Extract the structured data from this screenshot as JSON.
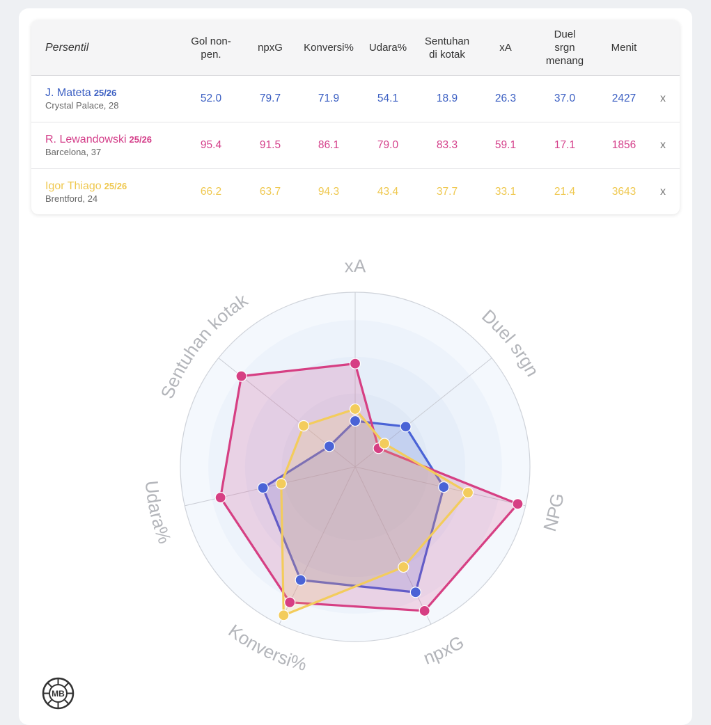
{
  "table": {
    "title": "Persentil",
    "columns": [
      [
        "Gol non-",
        "pen."
      ],
      [
        "npxG"
      ],
      [
        "Konversi%"
      ],
      [
        "Udara%"
      ],
      [
        "Sentuhan",
        "di kotak"
      ],
      [
        "xA"
      ],
      [
        "Duel",
        "srgn",
        "menang"
      ],
      [
        "Menit"
      ]
    ],
    "remove_label": "x",
    "rows": [
      {
        "name": "J. Mateta",
        "season": "25/26",
        "club": "Crystal Palace, 28",
        "values": [
          "52.0",
          "79.7",
          "71.9",
          "54.1",
          "18.9",
          "26.3",
          "37.0",
          "2427"
        ]
      },
      {
        "name": "R. Lewandowski",
        "season": "25/26",
        "club": "Barcelona, 37",
        "values": [
          "95.4",
          "91.5",
          "86.1",
          "79.0",
          "83.3",
          "59.1",
          "17.1",
          "1856"
        ]
      },
      {
        "name": "Igor Thiago",
        "season": "25/26",
        "club": "Brentford, 24",
        "values": [
          "66.2",
          "63.7",
          "94.3",
          "43.4",
          "37.7",
          "33.1",
          "21.4",
          "3643"
        ]
      }
    ]
  },
  "colors": {
    "blue": "#4a63d6",
    "pink": "#d63f83",
    "yellow": "#f3cc5c"
  },
  "chart_data": {
    "type": "radar",
    "axes": [
      "xA",
      "Duel srgn",
      "NPG",
      "npxG",
      "Konversi%",
      "Udara%",
      "Sentuhan kotak"
    ],
    "range": [
      0,
      100
    ],
    "series": [
      {
        "name": "J. Mateta",
        "color": "#4a63d6",
        "values": [
          26.3,
          37.0,
          52.0,
          79.7,
          71.9,
          54.1,
          18.9
        ]
      },
      {
        "name": "R. Lewandowski",
        "color": "#d63f83",
        "values": [
          59.1,
          17.1,
          95.4,
          91.5,
          86.1,
          79.0,
          83.3
        ]
      },
      {
        "name": "Igor Thiago",
        "color": "#f3cc5c",
        "values": [
          33.1,
          21.4,
          66.2,
          63.7,
          94.3,
          43.4,
          37.7
        ]
      }
    ]
  },
  "logo": {
    "text": "MB"
  }
}
